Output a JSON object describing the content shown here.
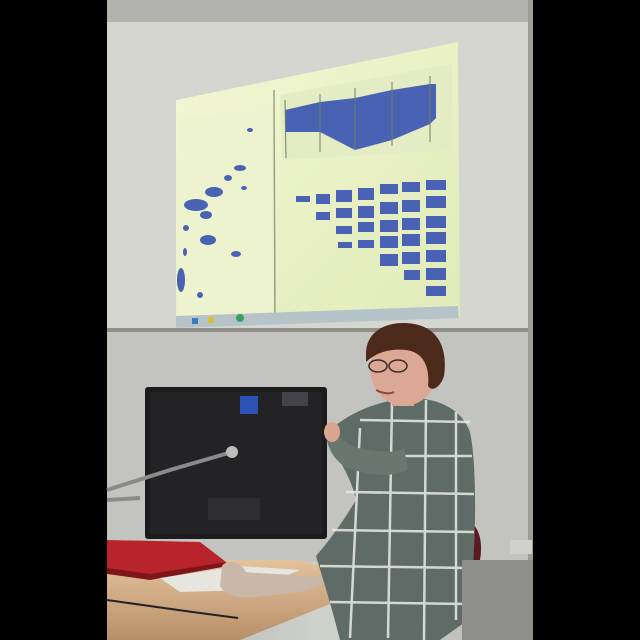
{
  "scene": {
    "palette": {
      "frame": "#000000",
      "wall": "#c9cbc6",
      "wall_shadow": "#8d8e8a",
      "screen_bg": "#dcdccb",
      "projection": "#e8f0c8",
      "chart_blue": "#4a62b4",
      "monitor": "#1c1c1e",
      "desk": "#d8b58f",
      "shirt": "#5f6b66",
      "chair": "#5a1a22",
      "laptop": "#b8242c"
    },
    "elements": [
      "projection-screen",
      "projected-visualization-software",
      "presenter",
      "computer-monitor-back",
      "desk",
      "red-laptop",
      "microphone-stand",
      "chair",
      "cloth-bag"
    ]
  }
}
